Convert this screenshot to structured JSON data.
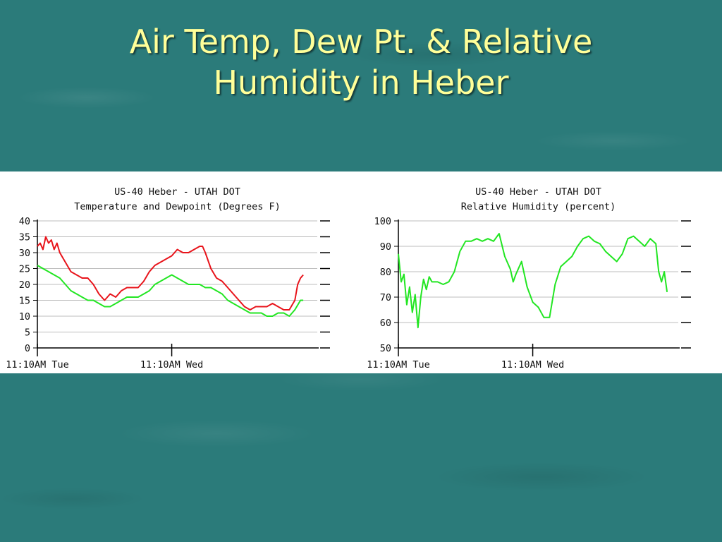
{
  "slide": {
    "title_line1": "Air Temp, Dew Pt. & Relative",
    "title_line2": "Humidity in Heber"
  },
  "colors": {
    "temperature": "#e8141b",
    "dewpoint": "#22e622",
    "humidity": "#22e622",
    "title": "#ffff99"
  },
  "chart_data": [
    {
      "type": "line",
      "title": "US-40 Heber - UTAH DOT",
      "subtitle": "Temperature and Dewpoint (Degrees F)",
      "xlabel": "",
      "ylabel": "",
      "x_tick_labels": [
        "11:10AM Tue",
        "11:10AM Wed"
      ],
      "x_ticks": [
        0,
        24
      ],
      "xlim": [
        0,
        50
      ],
      "ylim": [
        0,
        40
      ],
      "y_ticks": [
        0,
        5,
        10,
        15,
        20,
        25,
        30,
        35,
        40
      ],
      "grid": true,
      "series": [
        {
          "color": "#e8141b",
          "x": [
            0,
            0.5,
            1,
            1.5,
            2,
            2.5,
            3,
            3.5,
            4,
            5,
            6,
            7,
            8,
            9,
            10,
            11,
            12,
            12.5,
            13,
            14,
            15,
            16,
            17,
            18,
            19,
            20,
            21,
            22,
            23,
            24,
            25,
            26,
            27,
            28,
            29,
            29.5,
            30,
            31,
            32,
            33,
            34,
            35,
            36,
            37,
            38,
            39,
            40,
            41,
            42,
            43,
            44,
            45,
            46,
            46.5,
            47,
            47.5
          ],
          "y": [
            32,
            33,
            31,
            35,
            33,
            34,
            31,
            33,
            30,
            27,
            24,
            23,
            22,
            22,
            20,
            17,
            15,
            16,
            17,
            16,
            18,
            19,
            19,
            19,
            21,
            24,
            26,
            27,
            28,
            29,
            31,
            30,
            30,
            31,
            32,
            32,
            30,
            25,
            22,
            21,
            19,
            17,
            15,
            13,
            12,
            13,
            13,
            13,
            14,
            13,
            12,
            12,
            15,
            20,
            22,
            23
          ]
        },
        {
          "color": "#22e622",
          "x": [
            0,
            1,
            2,
            3,
            4,
            5,
            6,
            7,
            8,
            9,
            10,
            11,
            12,
            13,
            14,
            15,
            16,
            17,
            18,
            19,
            20,
            21,
            22,
            23,
            24,
            25,
            26,
            27,
            28,
            29,
            30,
            31,
            32,
            33,
            34,
            35,
            36,
            37,
            38,
            39,
            40,
            41,
            42,
            43,
            44,
            45,
            46,
            47,
            47.5
          ],
          "y": [
            26,
            25,
            24,
            23,
            22,
            20,
            18,
            17,
            16,
            15,
            15,
            14,
            13,
            13,
            14,
            15,
            16,
            16,
            16,
            17,
            18,
            20,
            21,
            22,
            23,
            22,
            21,
            20,
            20,
            20,
            19,
            19,
            18,
            17,
            15,
            14,
            13,
            12,
            11,
            11,
            11,
            10,
            10,
            11,
            11,
            10,
            12,
            15,
            15
          ]
        }
      ]
    },
    {
      "type": "line",
      "title": "US-40 Heber - UTAH DOT",
      "subtitle": "Relative Humidity (percent)",
      "xlabel": "",
      "ylabel": "",
      "x_tick_labels": [
        "11:10AM Tue",
        "11:10AM Wed"
      ],
      "x_ticks": [
        0,
        24
      ],
      "xlim": [
        0,
        50
      ],
      "ylim": [
        50,
        100
      ],
      "y_ticks": [
        50,
        60,
        70,
        80,
        90,
        100
      ],
      "grid": true,
      "series": [
        {
          "color": "#22e622",
          "x": [
            0,
            0.5,
            1,
            1.5,
            2,
            2.5,
            3,
            3.5,
            4,
            4.5,
            5,
            5.5,
            6,
            7,
            8,
            9,
            10,
            11,
            12,
            13,
            14,
            15,
            16,
            17,
            18,
            19,
            20,
            20.5,
            21,
            22,
            23,
            24,
            25,
            26,
            27,
            28,
            29,
            30,
            31,
            32,
            33,
            34,
            35,
            36,
            37,
            38,
            39,
            40,
            41,
            42,
            43,
            44,
            45,
            46,
            46.5,
            47,
            47.5,
            48
          ],
          "y": [
            87,
            76,
            79,
            67,
            74,
            64,
            71,
            58,
            70,
            77,
            73,
            78,
            76,
            76,
            75,
            76,
            80,
            88,
            92,
            92,
            93,
            92,
            93,
            92,
            95,
            86,
            81,
            76,
            79,
            84,
            74,
            68,
            66,
            62,
            62,
            75,
            82,
            84,
            86,
            90,
            93,
            94,
            92,
            91,
            88,
            86,
            84,
            87,
            93,
            94,
            92,
            90,
            93,
            91,
            80,
            76,
            80,
            72
          ]
        }
      ]
    }
  ]
}
